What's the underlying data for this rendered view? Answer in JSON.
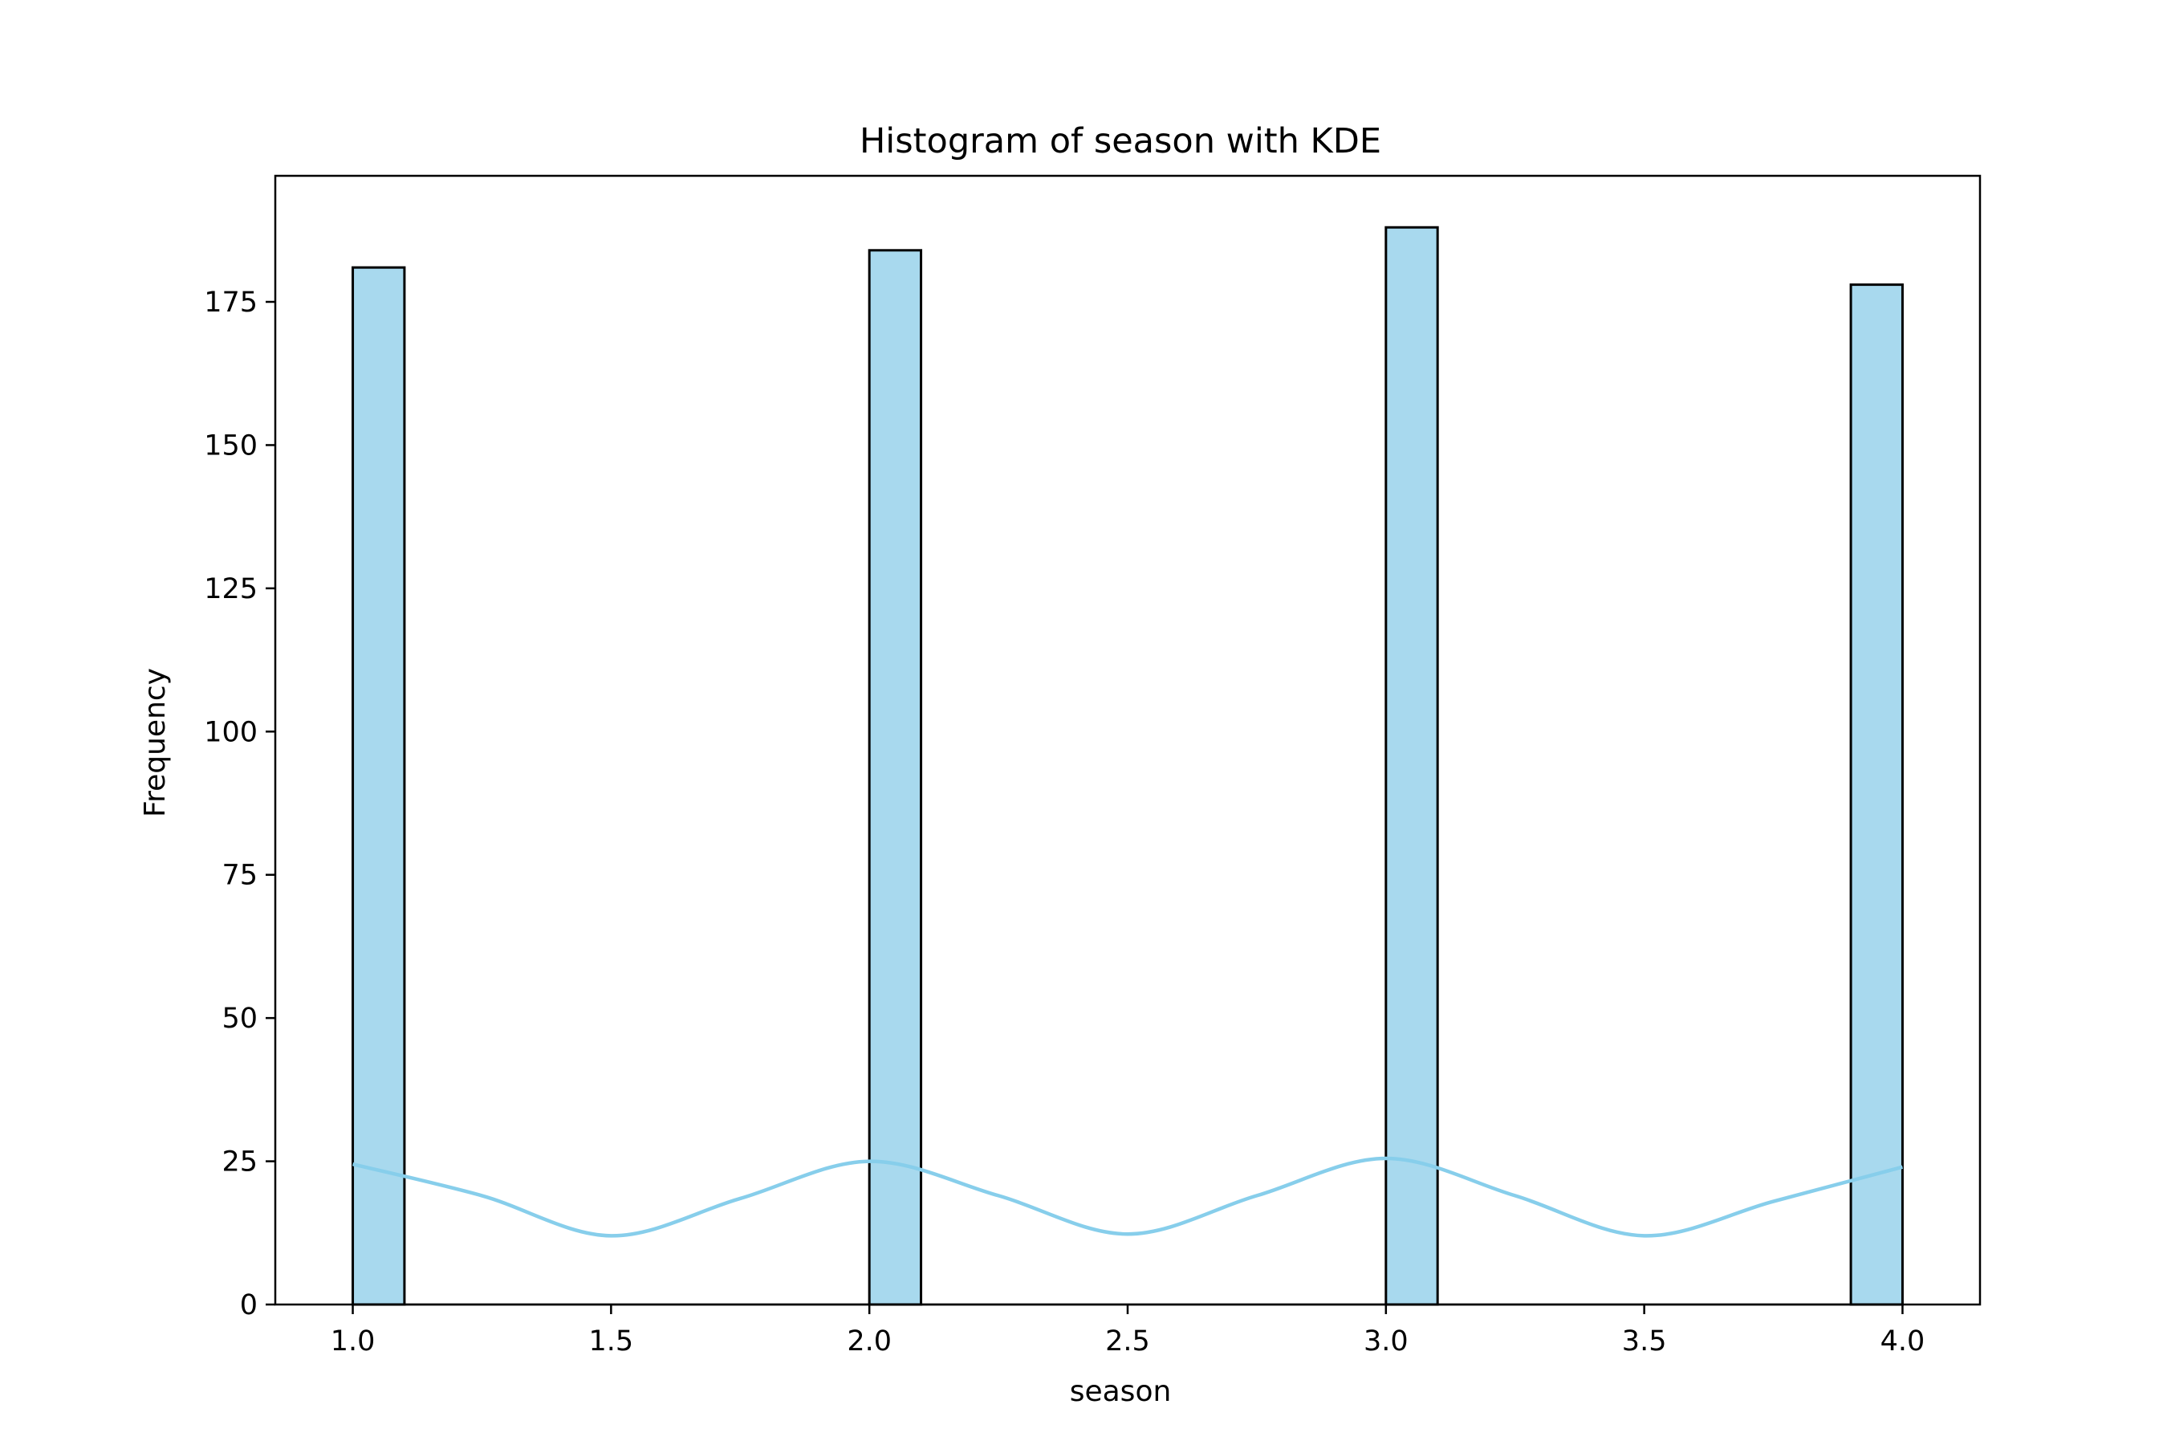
{
  "chart_data": {
    "type": "bar",
    "title": "Histogram of season with KDE",
    "xlabel": "season",
    "ylabel": "Frequency",
    "xlim": [
      0.85,
      4.15
    ],
    "ylim": [
      0,
      197
    ],
    "xticks": [
      1.0,
      1.5,
      2.0,
      2.5,
      3.0,
      3.5,
      4.0
    ],
    "xtick_labels": [
      "1.0",
      "1.5",
      "2.0",
      "2.5",
      "3.0",
      "3.5",
      "4.0"
    ],
    "yticks": [
      0,
      25,
      50,
      75,
      100,
      125,
      150,
      175
    ],
    "ytick_labels": [
      "0",
      "25",
      "50",
      "75",
      "100",
      "125",
      "150",
      "175"
    ],
    "bin_width": 0.1,
    "bars": [
      {
        "x_start": 1.0,
        "value": 181
      },
      {
        "x_start": 2.0,
        "value": 184
      },
      {
        "x_start": 3.0,
        "value": 188
      },
      {
        "x_start": 3.9,
        "value": 178
      }
    ],
    "kde": {
      "name": "KDE",
      "x": [
        1.0,
        1.25,
        1.5,
        1.75,
        2.0,
        2.25,
        2.5,
        2.75,
        3.0,
        3.25,
        3.5,
        3.75,
        4.0
      ],
      "y": [
        24.5,
        19.0,
        12.0,
        18.5,
        25.0,
        19.0,
        12.3,
        19.0,
        25.5,
        19.0,
        12.0,
        18.0,
        24.0
      ]
    },
    "colors": {
      "bar_fill": "#a8d9ee",
      "bar_edge": "#000000",
      "kde_line": "#87ceeb",
      "axes": "#000000"
    },
    "grid": false
  }
}
